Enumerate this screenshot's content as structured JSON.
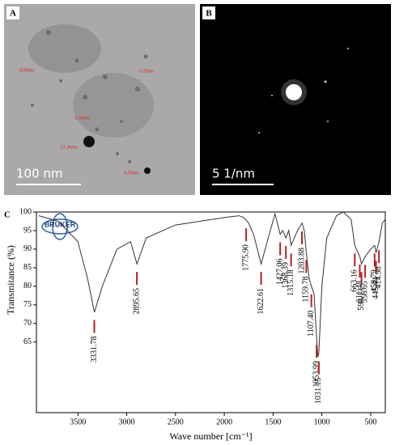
{
  "panels": {
    "a": {
      "label": "A",
      "scale": "100 nm",
      "annotations": [
        "8.09nm",
        "9.20nm",
        "9.19nm",
        "11.26nm",
        "8.39nm"
      ]
    },
    "b": {
      "label": "B",
      "scale": "5 1/nm"
    },
    "c": {
      "label": "C",
      "logo": "BRUKER"
    }
  },
  "chart_data": {
    "type": "line",
    "x_label": "Wave number [cm⁻¹]",
    "y_label": "Transmitance (%)",
    "xlim": [
      3925,
      350
    ],
    "ylim": [
      46,
      100
    ],
    "xticks": [
      3500,
      3000,
      2500,
      2000,
      1500,
      1000,
      500
    ],
    "yticks": [
      65,
      70,
      75,
      80,
      85,
      90,
      95,
      100
    ],
    "x": [
      3900,
      3700,
      3500,
      3400,
      3331,
      3250,
      3100,
      2960,
      2895,
      2800,
      2500,
      2000,
      1850,
      1800,
      1750,
      1700,
      1622,
      1550,
      1480,
      1427,
      1400,
      1368,
      1340,
      1315,
      1250,
      1203,
      1180,
      1159,
      1130,
      1107,
      1080,
      1053,
      1040,
      1031,
      1000,
      950,
      850,
      780,
      700,
      663,
      611,
      594,
      556,
      500,
      459,
      445,
      414,
      380,
      350
    ],
    "series": [
      {
        "name": "spectrum",
        "color": "#333333",
        "values": [
          99,
          97.5,
          92,
          82,
          73,
          80,
          90,
          92,
          86,
          93,
          96.5,
          98.5,
          99,
          98.5,
          97,
          94,
          86,
          93,
          99.5,
          94,
          95,
          93,
          95,
          91,
          95,
          97,
          95,
          89,
          82,
          80,
          78,
          66,
          61,
          62,
          80,
          93,
          99,
          100,
          98,
          91,
          88,
          86,
          88,
          90,
          91,
          89,
          92,
          97,
          98
        ]
      }
    ],
    "annotations": [
      {
        "value": 3331.78,
        "label": "3331.78"
      },
      {
        "value": 2895.65,
        "label": "2895.65"
      },
      {
        "value": 1775.9,
        "label": "1775.90"
      },
      {
        "value": 1622.61,
        "label": "1622.61"
      },
      {
        "value": 1427.06,
        "label": "1427.06"
      },
      {
        "value": 1368.39,
        "label": "1368.39"
      },
      {
        "value": 1315.18,
        "label": "1315.18"
      },
      {
        "value": 1203.88,
        "label": "1203.88"
      },
      {
        "value": 1159.78,
        "label": "1159.78"
      },
      {
        "value": 1107.4,
        "label": "1107.40"
      },
      {
        "value": 1053.99,
        "label": "1053.99"
      },
      {
        "value": 1031.15,
        "label": "1031.15"
      },
      {
        "value": 663.16,
        "label": "663.16"
      },
      {
        "value": 611.48,
        "label": "611.48"
      },
      {
        "value": 594.13,
        "label": "594.13"
      },
      {
        "value": 556.65,
        "label": "556.65"
      },
      {
        "value": 459.79,
        "label": "459.79"
      },
      {
        "value": 445.44,
        "label": "445.44"
      },
      {
        "value": 414.98,
        "label": "414.98"
      }
    ],
    "annotation_color": "#b22222"
  }
}
